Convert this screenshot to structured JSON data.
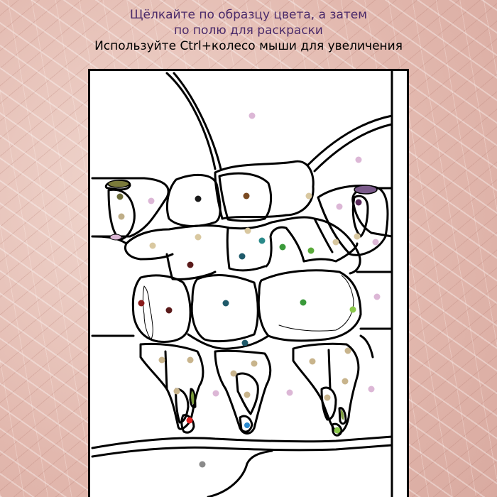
{
  "header": {
    "instruction_line1": "Щёлкайте по образцу цвета, а затем",
    "instruction_line2": "по полю для раскраски",
    "zoom_hint": "Используйте Ctrl+колесо мыши для увеличения"
  },
  "palette_colors": [
    "#1a1a1a",
    "#7a4a22",
    "#d9c8a0",
    "#dcb7d6",
    "#c8b48c",
    "#6c6c3a",
    "#5a2a5a",
    "#1f5a6a",
    "#2a8a8a",
    "#3a9a3a",
    "#5aaa3a",
    "#7a9a3a",
    "#8ac84a",
    "#5a1a1a",
    "#8a1a1a",
    "#e02020",
    "#2a8ad0",
    "#8a8a8a",
    "#9a6a9a",
    "#a89270",
    "#bfae88"
  ]
}
